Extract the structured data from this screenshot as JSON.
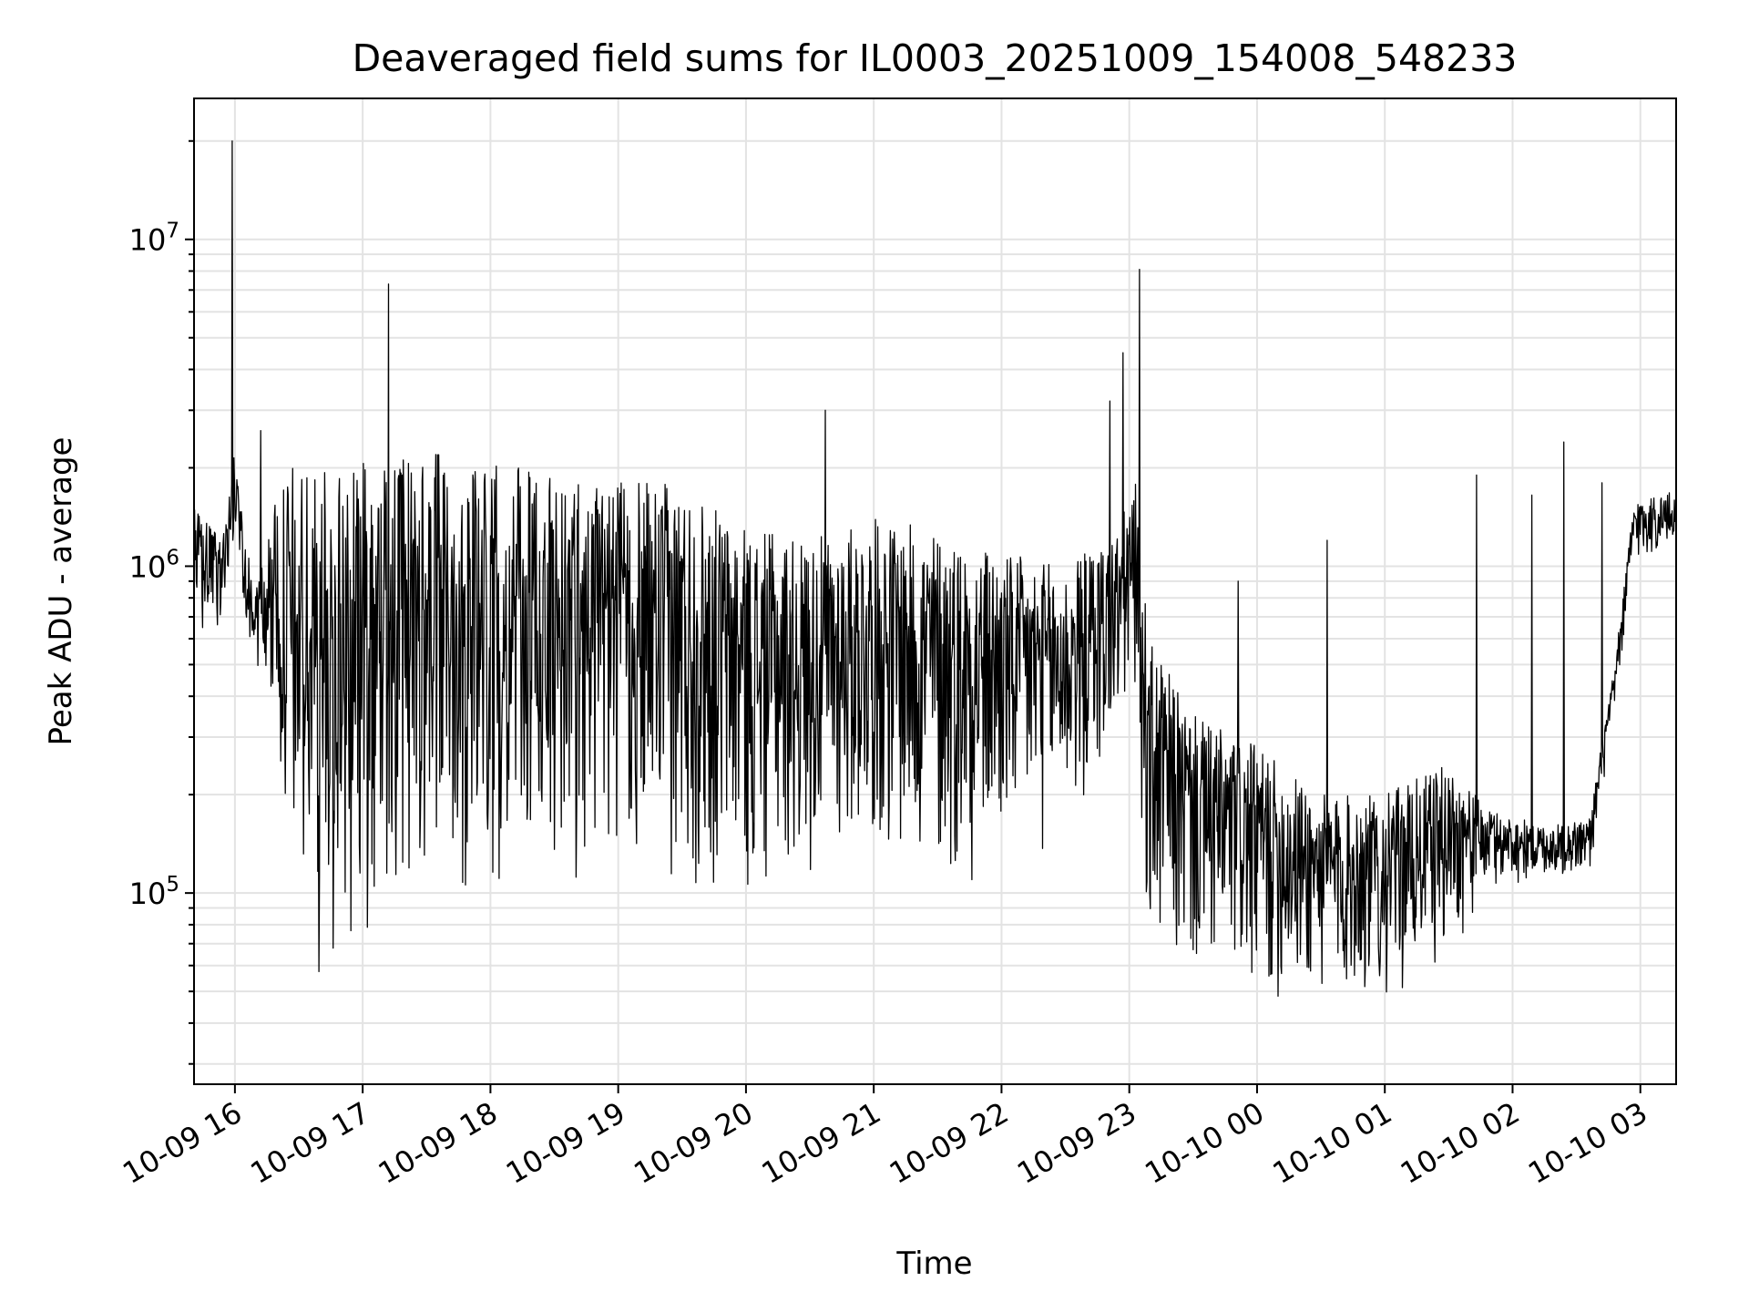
{
  "chart_data": {
    "type": "line",
    "title": "Deaveraged field sums for IL0003_20251009_154008_548233",
    "xlabel": "Time",
    "ylabel": "Peak ADU - average",
    "yscale": "log",
    "ylim": [
      26000,
      27000000
    ],
    "xlim_hours": [
      -0.32,
      11.28
    ],
    "grid": true,
    "line_color": "#000000",
    "x_ticks": [
      {
        "hour": 0,
        "label": "10-09 16"
      },
      {
        "hour": 1,
        "label": "10-09 17"
      },
      {
        "hour": 2,
        "label": "10-09 18"
      },
      {
        "hour": 3,
        "label": "10-09 19"
      },
      {
        "hour": 4,
        "label": "10-09 20"
      },
      {
        "hour": 5,
        "label": "10-09 21"
      },
      {
        "hour": 6,
        "label": "10-09 22"
      },
      {
        "hour": 7,
        "label": "10-09 23"
      },
      {
        "hour": 8,
        "label": "10-10 00"
      },
      {
        "hour": 9,
        "label": "10-10 01"
      },
      {
        "hour": 10,
        "label": "10-10 02"
      },
      {
        "hour": 11,
        "label": "10-10 03"
      }
    ],
    "y_ticks": [
      {
        "value": 100000,
        "base": "10",
        "exp": "5"
      },
      {
        "value": 1000000,
        "base": "10",
        "exp": "6"
      },
      {
        "value": 10000000,
        "base": "10",
        "exp": "7"
      }
    ],
    "envelope": [
      {
        "hour": -0.32,
        "low": 550000,
        "high": 1500000
      },
      {
        "hour": -0.1,
        "low": 650000,
        "high": 1200000
      },
      {
        "hour": 0.0,
        "low": 1000000,
        "high": 2300000
      },
      {
        "hour": 0.15,
        "low": 500000,
        "high": 800000
      },
      {
        "hour": 0.3,
        "low": 300000,
        "high": 1500000
      },
      {
        "hour": 0.45,
        "low": 90000,
        "high": 2000000
      },
      {
        "hour": 0.6,
        "low": 50000,
        "high": 2000000
      },
      {
        "hour": 0.8,
        "low": 55000,
        "high": 1900000
      },
      {
        "hour": 1.0,
        "low": 65000,
        "high": 2100000
      },
      {
        "hour": 1.3,
        "low": 80000,
        "high": 2200000
      },
      {
        "hour": 1.6,
        "low": 90000,
        "high": 2200000
      },
      {
        "hour": 2.0,
        "low": 95000,
        "high": 2100000
      },
      {
        "hour": 2.5,
        "low": 100000,
        "high": 1900000
      },
      {
        "hour": 3.0,
        "low": 110000,
        "high": 1800000
      },
      {
        "hour": 3.5,
        "low": 90000,
        "high": 1800000
      },
      {
        "hour": 4.0,
        "low": 90000,
        "high": 1300000
      },
      {
        "hour": 4.5,
        "low": 110000,
        "high": 1200000
      },
      {
        "hour": 5.0,
        "low": 130000,
        "high": 1400000
      },
      {
        "hour": 5.5,
        "low": 95000,
        "high": 1300000
      },
      {
        "hour": 6.0,
        "low": 110000,
        "high": 1100000
      },
      {
        "hour": 6.5,
        "low": 140000,
        "high": 1000000
      },
      {
        "hour": 6.9,
        "low": 250000,
        "high": 1300000
      },
      {
        "hour": 7.05,
        "low": 400000,
        "high": 1800000
      },
      {
        "hour": 7.15,
        "low": 55000,
        "high": 600000
      },
      {
        "hour": 7.5,
        "low": 50000,
        "high": 350000
      },
      {
        "hour": 8.0,
        "low": 45000,
        "high": 280000
      },
      {
        "hour": 8.5,
        "low": 44000,
        "high": 200000
      },
      {
        "hour": 9.0,
        "low": 45000,
        "high": 200000
      },
      {
        "hour": 9.5,
        "low": 60000,
        "high": 250000
      },
      {
        "hour": 9.8,
        "low": 100000,
        "high": 180000
      },
      {
        "hour": 10.3,
        "low": 110000,
        "high": 160000
      },
      {
        "hour": 10.6,
        "low": 110000,
        "high": 170000
      },
      {
        "hour": 10.8,
        "low": 350000,
        "high": 500000
      },
      {
        "hour": 10.95,
        "low": 1000000,
        "high": 1600000
      },
      {
        "hour": 11.28,
        "low": 1100000,
        "high": 1700000
      }
    ],
    "spikes": [
      {
        "hour": -0.02,
        "value": 20000000
      },
      {
        "hour": 1.2,
        "value": 7300000
      },
      {
        "hour": 7.08,
        "value": 8100000
      },
      {
        "hour": 6.95,
        "value": 4500000
      },
      {
        "hour": 6.85,
        "value": 3200000
      },
      {
        "hour": 4.62,
        "value": 3000000
      },
      {
        "hour": 0.2,
        "value": 2600000
      },
      {
        "hour": 10.4,
        "value": 2400000
      },
      {
        "hour": 9.72,
        "value": 1900000
      },
      {
        "hour": 10.15,
        "value": 1650000
      },
      {
        "hour": 10.7,
        "value": 1800000
      },
      {
        "hour": 8.55,
        "value": 1200000
      },
      {
        "hour": 7.85,
        "value": 900000
      }
    ]
  }
}
